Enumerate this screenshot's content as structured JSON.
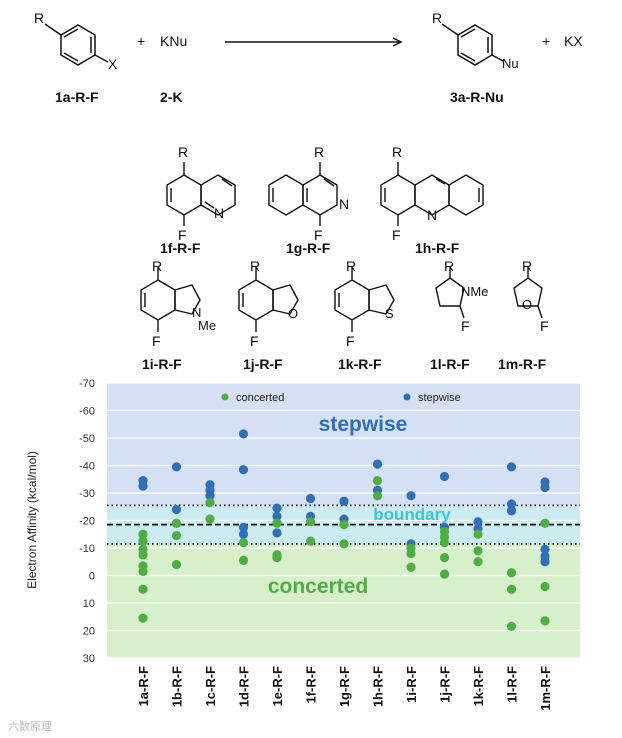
{
  "reaction": {
    "reactant_label": "1a-R-F",
    "reagent_label": "2-K",
    "product_label": "3a-R-Nu",
    "plus": "+",
    "reagent": "KNu",
    "byproduct": "KX",
    "sub_r": "R",
    "sub_x": "X",
    "sub_nu": "Nu"
  },
  "substrates": {
    "atom_r": "R",
    "atom_f": "F",
    "atom_n": "N",
    "atom_o": "O",
    "atom_s": "S",
    "atom_me": "Me",
    "atom_nme": "NMe",
    "labels": [
      "1f-R-F",
      "1g-R-F",
      "1h-R-F",
      "1i-R-F",
      "1j-R-F",
      "1k-R-F",
      "1l-R-F",
      "1m-R-F"
    ]
  },
  "watermark": "六数原理",
  "chart_data": {
    "type": "scatter",
    "ylabel": "Electron Affinity (kcal/mol)",
    "ylim": [
      -70,
      30
    ],
    "y_inverted": true,
    "ticks": [
      "-70",
      "-60",
      "-50",
      "-40",
      "-30",
      "-20",
      "-10",
      "0",
      "10",
      "20",
      "30"
    ],
    "tick_values": [
      -70,
      -60,
      -50,
      -40,
      -30,
      -20,
      -10,
      0,
      10,
      20,
      30
    ],
    "region_labels": {
      "stepwise": "stepwise",
      "boundary": "boundary",
      "concerted": "concerted"
    },
    "region_colors": {
      "stepwise": "#d6e0f5",
      "boundary": "#ccecf3",
      "concerted": "#d8efcc"
    },
    "boundary_lines": [
      -25.5,
      -18.5,
      -11.5
    ],
    "legend": [
      {
        "name": "concerted",
        "color": "#4caf3f"
      },
      {
        "name": "stepwise",
        "color": "#2f6fb8"
      }
    ],
    "categories": [
      "1a-R-F",
      "1b-R-F",
      "1c-R-F",
      "1d-R-F",
      "1e-R-F",
      "1f-R-F",
      "1g-R-F",
      "1h-R-F",
      "1i-R-F",
      "1j-R-F",
      "1k-R-F",
      "1l-R-F",
      "1m-R-F"
    ],
    "series": [
      {
        "name": "stepwise",
        "color": "#2f6fb8",
        "points": [
          {
            "cat": 0,
            "y": -34.5
          },
          {
            "cat": 0,
            "y": -32.5
          },
          {
            "cat": 1,
            "y": -39.5
          },
          {
            "cat": 1,
            "y": -24.0
          },
          {
            "cat": 2,
            "y": -33.0
          },
          {
            "cat": 2,
            "y": -31.0
          },
          {
            "cat": 2,
            "y": -29.0
          },
          {
            "cat": 3,
            "y": -51.5
          },
          {
            "cat": 3,
            "y": -38.5
          },
          {
            "cat": 3,
            "y": -17.5
          },
          {
            "cat": 3,
            "y": -15.0
          },
          {
            "cat": 4,
            "y": -24.5
          },
          {
            "cat": 4,
            "y": -21.5
          },
          {
            "cat": 4,
            "y": -15.5
          },
          {
            "cat": 5,
            "y": -28.0
          },
          {
            "cat": 5,
            "y": -21.5
          },
          {
            "cat": 6,
            "y": -27.0
          },
          {
            "cat": 6,
            "y": -20.5
          },
          {
            "cat": 7,
            "y": -40.5
          },
          {
            "cat": 7,
            "y": -31.0
          },
          {
            "cat": 8,
            "y": -29.0
          },
          {
            "cat": 8,
            "y": -11.5
          },
          {
            "cat": 9,
            "y": -36.0
          },
          {
            "cat": 9,
            "y": -17.5
          },
          {
            "cat": 10,
            "y": -19.5
          },
          {
            "cat": 10,
            "y": -17.0
          },
          {
            "cat": 11,
            "y": -39.5
          },
          {
            "cat": 11,
            "y": -26.0
          },
          {
            "cat": 11,
            "y": -23.5
          },
          {
            "cat": 12,
            "y": -34.0
          },
          {
            "cat": 12,
            "y": -32.0
          },
          {
            "cat": 12,
            "y": -9.5
          },
          {
            "cat": 12,
            "y": -7.0
          },
          {
            "cat": 12,
            "y": -5.0
          }
        ]
      },
      {
        "name": "concerted",
        "color": "#4caf3f",
        "points": [
          {
            "cat": 0,
            "y": -15.0
          },
          {
            "cat": 0,
            "y": -12.5
          },
          {
            "cat": 0,
            "y": -9.5
          },
          {
            "cat": 0,
            "y": -7.5
          },
          {
            "cat": 0,
            "y": -3.5
          },
          {
            "cat": 0,
            "y": -1.5
          },
          {
            "cat": 0,
            "y": 5.0
          },
          {
            "cat": 0,
            "y": 15.5
          },
          {
            "cat": 1,
            "y": -19.0
          },
          {
            "cat": 1,
            "y": -14.5
          },
          {
            "cat": 1,
            "y": -4.0
          },
          {
            "cat": 2,
            "y": -26.5
          },
          {
            "cat": 2,
            "y": -20.5
          },
          {
            "cat": 3,
            "y": -12.0
          },
          {
            "cat": 3,
            "y": -5.5
          },
          {
            "cat": 4,
            "y": -19.0
          },
          {
            "cat": 4,
            "y": -7.5
          },
          {
            "cat": 4,
            "y": -6.5
          },
          {
            "cat": 5,
            "y": -19.5
          },
          {
            "cat": 5,
            "y": -12.5
          },
          {
            "cat": 6,
            "y": -18.5
          },
          {
            "cat": 6,
            "y": -11.5
          },
          {
            "cat": 7,
            "y": -34.5
          },
          {
            "cat": 7,
            "y": -29.0
          },
          {
            "cat": 8,
            "y": -10.0
          },
          {
            "cat": 8,
            "y": -8.0
          },
          {
            "cat": 8,
            "y": -3.0
          },
          {
            "cat": 9,
            "y": -16.0
          },
          {
            "cat": 9,
            "y": -14.0
          },
          {
            "cat": 9,
            "y": -12.0
          },
          {
            "cat": 9,
            "y": -6.5
          },
          {
            "cat": 9,
            "y": -0.5
          },
          {
            "cat": 10,
            "y": -15.0
          },
          {
            "cat": 10,
            "y": -9.0
          },
          {
            "cat": 10,
            "y": -5.0
          },
          {
            "cat": 11,
            "y": -1.0
          },
          {
            "cat": 11,
            "y": 5.0
          },
          {
            "cat": 11,
            "y": 18.5
          },
          {
            "cat": 12,
            "y": -19.0
          },
          {
            "cat": 12,
            "y": 4.0
          },
          {
            "cat": 12,
            "y": 16.5
          }
        ]
      }
    ]
  }
}
